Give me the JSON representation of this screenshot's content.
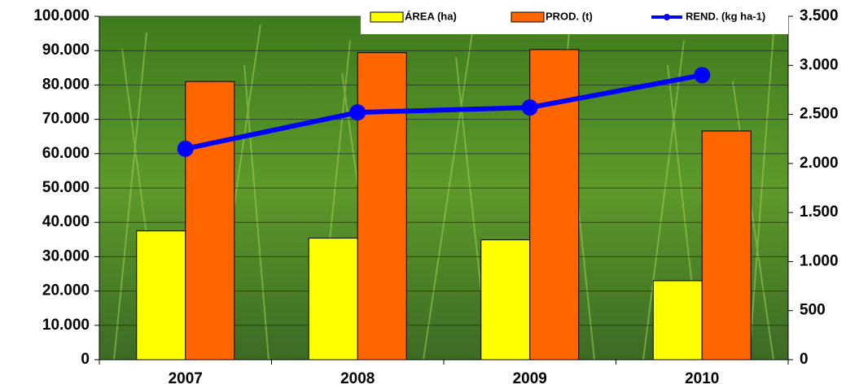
{
  "chart_data": {
    "type": "bar",
    "categories": [
      "2007",
      "2008",
      "2009",
      "2010"
    ],
    "series": [
      {
        "name": "ÁREA (ha)",
        "color": "#ffff00",
        "values": [
          37500,
          35400,
          34900,
          23000
        ]
      },
      {
        "name": "PROD. (t)",
        "color": "#ff6600",
        "values": [
          81000,
          89400,
          90300,
          66600
        ]
      },
      {
        "name": "REND. (kg ha-1)",
        "color": "#0000ff",
        "type": "line",
        "axis": "y2",
        "values": [
          2150,
          2520,
          2570,
          2900
        ]
      }
    ],
    "ylim": [
      0,
      100000
    ],
    "yticks": [
      0,
      {
        "value": 10000,
        "label": "10.000"
      },
      {
        "value": 20000,
        "label": "20.000"
      },
      {
        "value": 30000,
        "label": "30.000"
      },
      {
        "value": 40000,
        "label": "40.000"
      },
      {
        "value": 50000,
        "label": "50.000"
      },
      {
        "value": 60000,
        "label": "60.000"
      },
      {
        "value": 70000,
        "label": "70.000"
      },
      {
        "value": 80000,
        "label": "80.000"
      },
      {
        "value": 90000,
        "label": "90.000"
      },
      {
        "value": 100000,
        "label": "100.000"
      }
    ],
    "y2lim": [
      0,
      3500
    ],
    "y2ticks": [
      0,
      500,
      {
        "value": 1000,
        "label": "1.000"
      },
      {
        "value": 1500,
        "label": "1.500"
      },
      {
        "value": 2000,
        "label": "2.000"
      },
      {
        "value": 2500,
        "label": "2.500"
      },
      {
        "value": 3000,
        "label": "3.000"
      },
      {
        "value": 3500,
        "label": "3.500"
      }
    ],
    "grid": true,
    "legend": "top"
  }
}
